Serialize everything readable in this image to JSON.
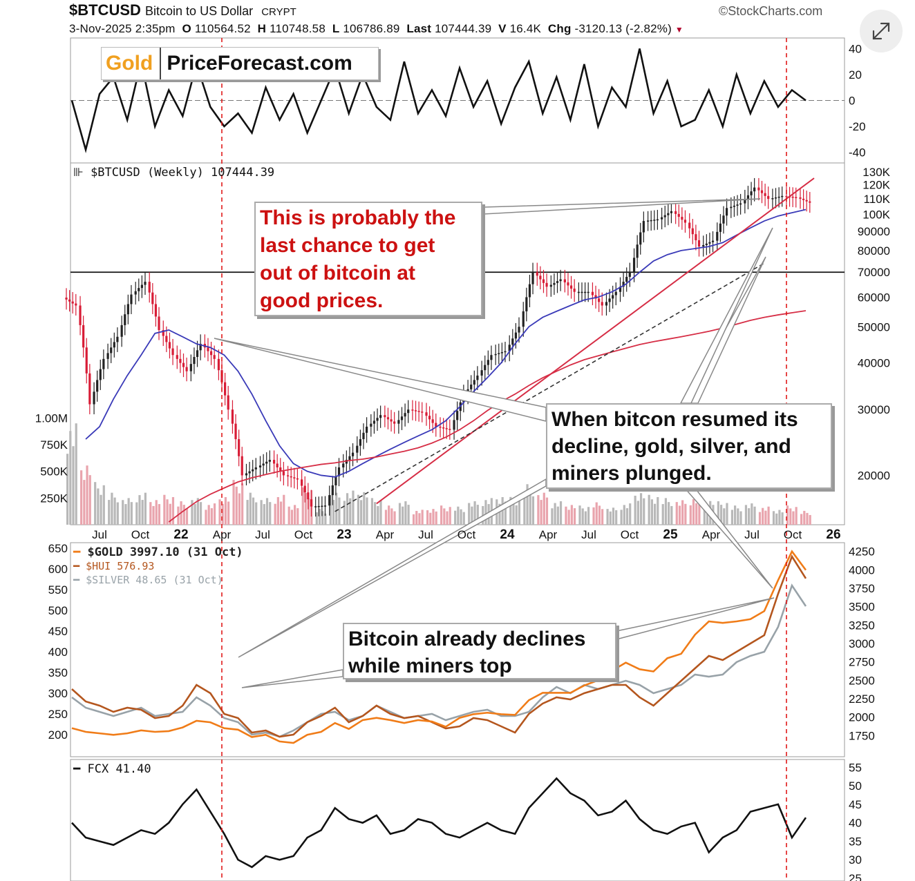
{
  "header": {
    "symbol": "$BTCUSD",
    "description": "Bitcoin to US Dollar",
    "type": "CRYPT",
    "brand": "©StockCharts.com",
    "quote_line": {
      "date": "3-Nov-2025 2:35pm",
      "o_label": "O",
      "o_value": "110564.52",
      "h_label": "H",
      "h_value": "110748.58",
      "l_label": "L",
      "l_value": "106786.89",
      "last_label": "Last",
      "last_value": "107444.39",
      "v_label": "V",
      "v_value": "16.4K",
      "chg_label": "Chg",
      "chg_value": "-3120.13 (-2.82%)"
    }
  },
  "logo": {
    "gold": "Gold",
    "rest": "PriceForecast.com"
  },
  "expand_icon": "expand-diagonal-icon",
  "callouts": {
    "c1": "This is probably the\nlast chance to get\nout of bitcoin at\ngood prices.",
    "c2": "When bitcon resumed its\ndecline, gold, silver, and\nminers plunged.",
    "c3": "Bitcoin already declines\nwhile miners top"
  },
  "colors": {
    "btc_ma_blue": "#3a3ab8",
    "ma_red": "#d62d45",
    "gold": "#f07c18",
    "hui": "#b4561e",
    "silver": "#98a2a8",
    "bar_red": "#d81c36",
    "bar_black": "#222222",
    "vline": "#e01818"
  },
  "x_axis_labels": [
    "Jul",
    "Oct",
    "22",
    "Apr",
    "Jul",
    "Oct",
    "23",
    "Apr",
    "Jul",
    "Oct",
    "24",
    "Apr",
    "Jul",
    "Oct",
    "25",
    "Apr",
    "Jul",
    "Oct",
    "26"
  ],
  "chart_data": [
    {
      "type": "line",
      "panel": "oscillator",
      "y_tick_labels": [
        "40",
        "20",
        "0",
        "-20",
        "-40"
      ],
      "ylim": [
        -45,
        45
      ],
      "x": [
        "2021-06",
        "2021-07",
        "2021-08",
        "2021-09",
        "2021-10",
        "2021-11",
        "2021-12",
        "2022-01",
        "2022-02",
        "2022-03",
        "2022-04",
        "2022-05",
        "2022-06",
        "2022-07",
        "2022-08",
        "2022-09",
        "2022-10",
        "2022-11",
        "2022-12",
        "2023-01",
        "2023-02",
        "2023-03",
        "2023-04",
        "2023-05",
        "2023-06",
        "2023-07",
        "2023-08",
        "2023-09",
        "2023-10",
        "2023-11",
        "2023-12",
        "2024-01",
        "2024-02",
        "2024-03",
        "2024-04",
        "2024-05",
        "2024-06",
        "2024-07",
        "2024-08",
        "2024-09",
        "2024-10",
        "2024-11",
        "2024-12",
        "2025-01",
        "2025-02",
        "2025-03",
        "2025-04",
        "2025-05",
        "2025-06",
        "2025-07",
        "2025-08",
        "2025-09",
        "2025-10",
        "2025-11"
      ],
      "values": [
        0,
        -38,
        5,
        18,
        -15,
        30,
        -20,
        8,
        -12,
        28,
        -5,
        -20,
        -10,
        -25,
        10,
        -15,
        5,
        -25,
        0,
        25,
        -10,
        20,
        -5,
        -15,
        30,
        -10,
        8,
        -12,
        25,
        -5,
        15,
        -18,
        10,
        30,
        -10,
        18,
        -15,
        28,
        -20,
        10,
        -5,
        40,
        -10,
        15,
        -20,
        -15,
        8,
        -20,
        20,
        -10,
        15,
        -5,
        8,
        0
      ]
    },
    {
      "type": "candlestick",
      "panel": "price",
      "title": "$BTCUSD (Weekly) 107444.39",
      "scale": "log",
      "y_tick_labels": [
        "130K",
        "120K",
        "110K",
        "100K",
        "90000",
        "80000",
        "70000",
        "60000",
        "50000",
        "40000",
        "30000",
        "20000"
      ],
      "ylim": [
        15000,
        135000
      ],
      "x": [
        "2021-06",
        "2021-07",
        "2021-08",
        "2021-09",
        "2021-10",
        "2021-11",
        "2021-12",
        "2022-01",
        "2022-02",
        "2022-03",
        "2022-04",
        "2022-05",
        "2022-06",
        "2022-07",
        "2022-08",
        "2022-09",
        "2022-10",
        "2022-11",
        "2022-12",
        "2023-01",
        "2023-02",
        "2023-03",
        "2023-04",
        "2023-05",
        "2023-06",
        "2023-07",
        "2023-08",
        "2023-09",
        "2023-10",
        "2023-11",
        "2023-12",
        "2024-01",
        "2024-02",
        "2024-03",
        "2024-04",
        "2024-05",
        "2024-06",
        "2024-07",
        "2024-08",
        "2024-09",
        "2024-10",
        "2024-11",
        "2024-12",
        "2025-01",
        "2025-02",
        "2025-03",
        "2025-04",
        "2025-05",
        "2025-06",
        "2025-07",
        "2025-08",
        "2025-09",
        "2025-10",
        "2025-11"
      ],
      "close": [
        57000,
        31000,
        41000,
        47000,
        61000,
        66000,
        49000,
        42000,
        38000,
        45000,
        41000,
        30000,
        20000,
        21000,
        22000,
        20000,
        19500,
        16500,
        16600,
        21000,
        23000,
        27000,
        29000,
        27500,
        30000,
        29500,
        27000,
        26500,
        33000,
        37000,
        42000,
        43000,
        50000,
        70000,
        64000,
        67000,
        62000,
        62000,
        57000,
        62000,
        70000,
        96000,
        97000,
        102000,
        95000,
        82000,
        85000,
        104000,
        107000,
        118000,
        110000,
        112000,
        111000,
        107444
      ],
      "ma_blue": [
        null,
        25000,
        27000,
        32000,
        37000,
        42000,
        48000,
        49000,
        47000,
        45000,
        44000,
        42000,
        38000,
        33000,
        28000,
        24000,
        21500,
        20500,
        20000,
        19800,
        20500,
        21500,
        22500,
        23500,
        24500,
        25500,
        26500,
        28000,
        30500,
        33500,
        36500,
        40000,
        45000,
        50000,
        53000,
        55000,
        57000,
        59000,
        60000,
        62000,
        65000,
        70000,
        75000,
        78000,
        80000,
        81000,
        82000,
        84000,
        88000,
        92000,
        96000,
        99000,
        101000,
        103000
      ],
      "ma_red": [
        null,
        null,
        null,
        null,
        null,
        null,
        null,
        15000,
        16000,
        17000,
        17800,
        18500,
        19200,
        19700,
        20100,
        20500,
        20800,
        21100,
        21400,
        21600,
        21900,
        22100,
        22400,
        22800,
        23200,
        23700,
        24400,
        25300,
        26500,
        28000,
        29800,
        31500,
        33000,
        34800,
        36500,
        38000,
        39500,
        40800,
        41800,
        42800,
        43800,
        44800,
        45600,
        46300,
        47000,
        47800,
        48600,
        49600,
        50800,
        52000,
        53000,
        53800,
        54500,
        55200
      ],
      "horizontal_line": 70000
    },
    {
      "type": "bar",
      "panel": "volume",
      "y_tick_labels": [
        "1.00M",
        "750K",
        "500K",
        "250K"
      ],
      "ylim": [
        0,
        1100000
      ],
      "x": [
        "2021-06",
        "2021-07",
        "2021-08",
        "2021-09",
        "2021-10",
        "2021-11",
        "2021-12",
        "2022-01",
        "2022-02",
        "2022-03",
        "2022-04",
        "2022-05",
        "2022-06",
        "2022-07",
        "2022-08",
        "2022-09",
        "2022-10",
        "2022-11",
        "2022-12",
        "2023-01",
        "2023-02",
        "2023-03",
        "2023-04",
        "2023-05",
        "2023-06",
        "2023-07",
        "2023-08",
        "2023-09",
        "2023-10",
        "2023-11",
        "2023-12",
        "2024-01",
        "2024-02",
        "2024-03",
        "2024-04",
        "2024-05",
        "2024-06",
        "2024-07",
        "2024-08",
        "2024-09",
        "2024-10",
        "2024-11",
        "2024-12",
        "2025-01",
        "2025-02",
        "2025-03",
        "2025-04",
        "2025-05",
        "2025-06",
        "2025-07",
        "2025-08",
        "2025-09",
        "2025-10",
        "2025-11"
      ],
      "values": [
        950000,
        600000,
        400000,
        300000,
        250000,
        300000,
        250000,
        280000,
        220000,
        250000,
        200000,
        280000,
        420000,
        300000,
        250000,
        280000,
        200000,
        350000,
        150000,
        300000,
        320000,
        330000,
        250000,
        180000,
        220000,
        140000,
        160000,
        180000,
        170000,
        220000,
        250000,
        280000,
        260000,
        380000,
        300000,
        220000,
        200000,
        180000,
        210000,
        160000,
        200000,
        320000,
        280000,
        250000,
        230000,
        260000,
        240000,
        220000,
        180000,
        200000,
        170000,
        150000,
        180000,
        130000
      ]
    },
    {
      "type": "line",
      "panel": "precious_metals",
      "y_left_tick_labels": [
        "650",
        "600",
        "550",
        "500",
        "450",
        "400",
        "350",
        "300",
        "250",
        "200"
      ],
      "y_right_tick_labels": [
        "4250",
        "4000",
        "3750",
        "3500",
        "3250",
        "3000",
        "2750",
        "2500",
        "2250",
        "2000",
        "1750"
      ],
      "ylim_left": [
        180,
        660
      ],
      "ylim_right": [
        1650,
        4350
      ],
      "x": [
        "2021-06",
        "2021-07",
        "2021-08",
        "2021-09",
        "2021-10",
        "2021-11",
        "2021-12",
        "2022-01",
        "2022-02",
        "2022-03",
        "2022-04",
        "2022-05",
        "2022-06",
        "2022-07",
        "2022-08",
        "2022-09",
        "2022-10",
        "2022-11",
        "2022-12",
        "2023-01",
        "2023-02",
        "2023-03",
        "2023-04",
        "2023-05",
        "2023-06",
        "2023-07",
        "2023-08",
        "2023-09",
        "2023-10",
        "2023-11",
        "2023-12",
        "2024-01",
        "2024-02",
        "2024-03",
        "2024-04",
        "2024-05",
        "2024-06",
        "2024-07",
        "2024-08",
        "2024-09",
        "2024-10",
        "2024-11",
        "2024-12",
        "2025-01",
        "2025-02",
        "2025-03",
        "2025-04",
        "2025-05",
        "2025-06",
        "2025-07",
        "2025-08",
        "2025-09",
        "2025-10",
        "2025-11"
      ],
      "series": [
        {
          "name": "$GOLD 3997.10 (31 Oct)",
          "axis": "right",
          "values": [
            1850,
            1800,
            1780,
            1760,
            1780,
            1820,
            1800,
            1810,
            1860,
            1950,
            1930,
            1850,
            1830,
            1730,
            1760,
            1670,
            1650,
            1760,
            1800,
            1920,
            1840,
            1960,
            1990,
            1960,
            1920,
            1960,
            1940,
            1870,
            1990,
            2040,
            2060,
            2040,
            2030,
            2230,
            2330,
            2330,
            2330,
            2430,
            2500,
            2630,
            2740,
            2650,
            2620,
            2800,
            2860,
            3120,
            3300,
            3280,
            3300,
            3330,
            3440,
            3860,
            4250,
            3997
          ]
        },
        {
          "name": "$HUI 576.93",
          "axis": "left",
          "values": [
            310,
            280,
            270,
            255,
            265,
            260,
            240,
            245,
            270,
            320,
            300,
            250,
            240,
            205,
            210,
            195,
            200,
            230,
            245,
            265,
            230,
            245,
            270,
            250,
            240,
            245,
            230,
            215,
            220,
            240,
            235,
            220,
            205,
            250,
            275,
            290,
            285,
            300,
            310,
            320,
            320,
            290,
            270,
            300,
            330,
            360,
            390,
            380,
            400,
            420,
            440,
            540,
            630,
            577
          ]
        },
        {
          "name": "$SILVER 48.65 (31 Oct)",
          "axis": "left",
          "values": [
            290,
            265,
            255,
            245,
            255,
            265,
            245,
            250,
            255,
            290,
            270,
            240,
            230,
            200,
            205,
            195,
            210,
            230,
            250,
            255,
            235,
            245,
            270,
            255,
            240,
            245,
            250,
            235,
            245,
            255,
            260,
            245,
            245,
            255,
            290,
            315,
            300,
            320,
            310,
            320,
            330,
            320,
            300,
            310,
            320,
            345,
            340,
            345,
            375,
            390,
            400,
            460,
            560,
            510
          ]
        }
      ]
    },
    {
      "type": "line",
      "panel": "fcx",
      "name": "FCX 41.40",
      "y_tick_labels": [
        "55",
        "50",
        "45",
        "40",
        "35",
        "30",
        "25"
      ],
      "ylim": [
        25,
        56
      ],
      "x": [
        "2021-06",
        "2021-07",
        "2021-08",
        "2021-09",
        "2021-10",
        "2021-11",
        "2021-12",
        "2022-01",
        "2022-02",
        "2022-03",
        "2022-04",
        "2022-05",
        "2022-06",
        "2022-07",
        "2022-08",
        "2022-09",
        "2022-10",
        "2022-11",
        "2022-12",
        "2023-01",
        "2023-02",
        "2023-03",
        "2023-04",
        "2023-05",
        "2023-06",
        "2023-07",
        "2023-08",
        "2023-09",
        "2023-10",
        "2023-11",
        "2023-12",
        "2024-01",
        "2024-02",
        "2024-03",
        "2024-04",
        "2024-05",
        "2024-06",
        "2024-07",
        "2024-08",
        "2024-09",
        "2024-10",
        "2024-11",
        "2024-12",
        "2025-01",
        "2025-02",
        "2025-03",
        "2025-04",
        "2025-05",
        "2025-06",
        "2025-07",
        "2025-08",
        "2025-09",
        "2025-10",
        "2025-11"
      ],
      "values": [
        40,
        36,
        35,
        34,
        36,
        38,
        37,
        40,
        45,
        49,
        43,
        37,
        30,
        28,
        31,
        30,
        31,
        36,
        38,
        44,
        41,
        40,
        42,
        37,
        38,
        41,
        40,
        37,
        36,
        38,
        40,
        38,
        37,
        44,
        48,
        52,
        48,
        46,
        42,
        43,
        46,
        41,
        38,
        37,
        39,
        40,
        32,
        36,
        38,
        43,
        44,
        45,
        36,
        41.4
      ]
    }
  ]
}
